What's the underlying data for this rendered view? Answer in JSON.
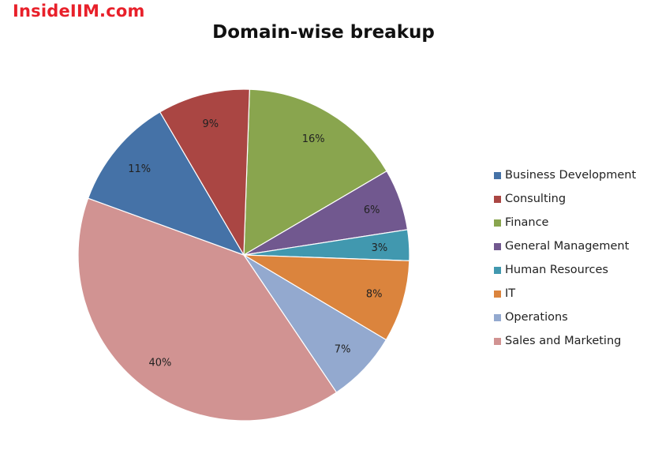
{
  "watermark": "InsideIIM.com",
  "chart_data": {
    "type": "pie",
    "title": "Domain-wise breakup",
    "legend_position": "right",
    "categories": [
      "Business Development",
      "Consulting",
      "Finance",
      "General Management",
      "Human Resources",
      "IT",
      "Operations",
      "Sales and Marketing"
    ],
    "values": [
      11,
      9,
      16,
      6,
      3,
      8,
      7,
      40
    ],
    "data_labels": [
      "11%",
      "9%",
      "16%",
      "6%",
      "3%",
      "8%",
      "7%",
      "40%"
    ],
    "colors": [
      "#4572a7",
      "#aa4643",
      "#89a54e",
      "#71588f",
      "#4198af",
      "#db843d",
      "#93a9cf",
      "#d19392"
    ]
  }
}
